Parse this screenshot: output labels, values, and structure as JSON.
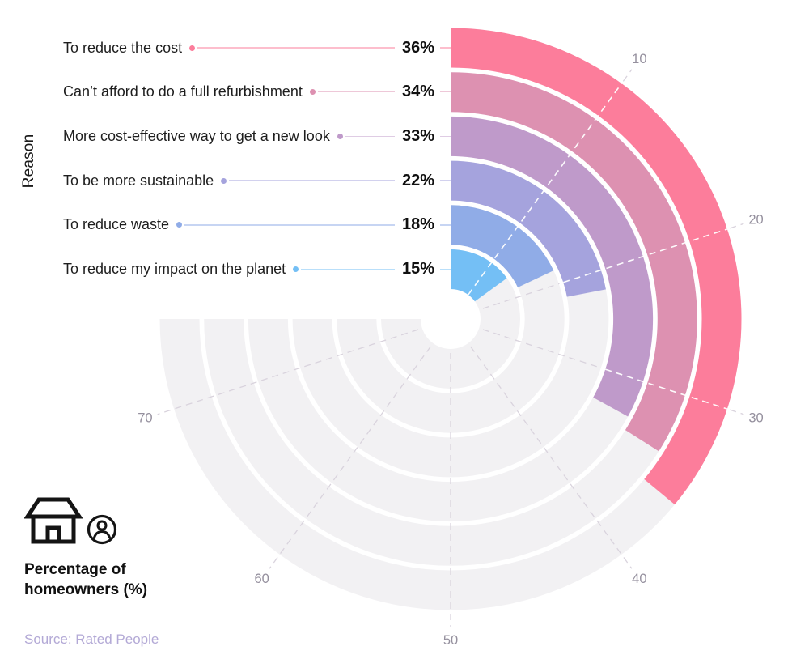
{
  "chart_data": {
    "type": "radial-bar",
    "categories": [
      "To reduce the cost",
      "Can’t afford to do a full refurbishment",
      "More cost-effective way to get a new look",
      "To be more sustainable",
      "To reduce waste",
      "To reduce my impact on the planet"
    ],
    "values": [
      36,
      34,
      33,
      22,
      18,
      15
    ],
    "value_labels": [
      "36%",
      "34%",
      "33%",
      "22%",
      "18%",
      "15%"
    ],
    "unit": "%",
    "colors": [
      "#FC7D9B",
      "#DD91B1",
      "#BF9ACA",
      "#A5A3DD",
      "#90ACE7",
      "#74BFF5"
    ],
    "axis": {
      "ticks": [
        10,
        20,
        30,
        40,
        50,
        60,
        70
      ],
      "tick_labels": [
        "10",
        "20",
        "30",
        "40",
        "50",
        "60",
        "70"
      ],
      "degrees_per_unit": 3.6,
      "start_angle_deg": 0,
      "direction": "clockwise",
      "track_end_value": 75,
      "range_full_circle": 100
    },
    "track_color": "#F2F1F3",
    "gridline_color": "#D9D3DD",
    "gridline_over_bar_color": "#FFFFFF",
    "tick_label_color": "#95909E",
    "ylabel": "Reason",
    "xlabel": "Percentage of homeowners (%)",
    "legend_position": "bottom-left",
    "grid": "dashed-radial"
  },
  "y_axis_title": "Reason",
  "x_axis_title_line1": "Percentage of",
  "x_axis_title_line2": "homeowners (%)",
  "source_text": "Source: Rated People",
  "icon_names": {
    "house": "house-icon",
    "person": "person-icon"
  },
  "text_color": "#1e1e1e",
  "value_text_color": "#101010"
}
